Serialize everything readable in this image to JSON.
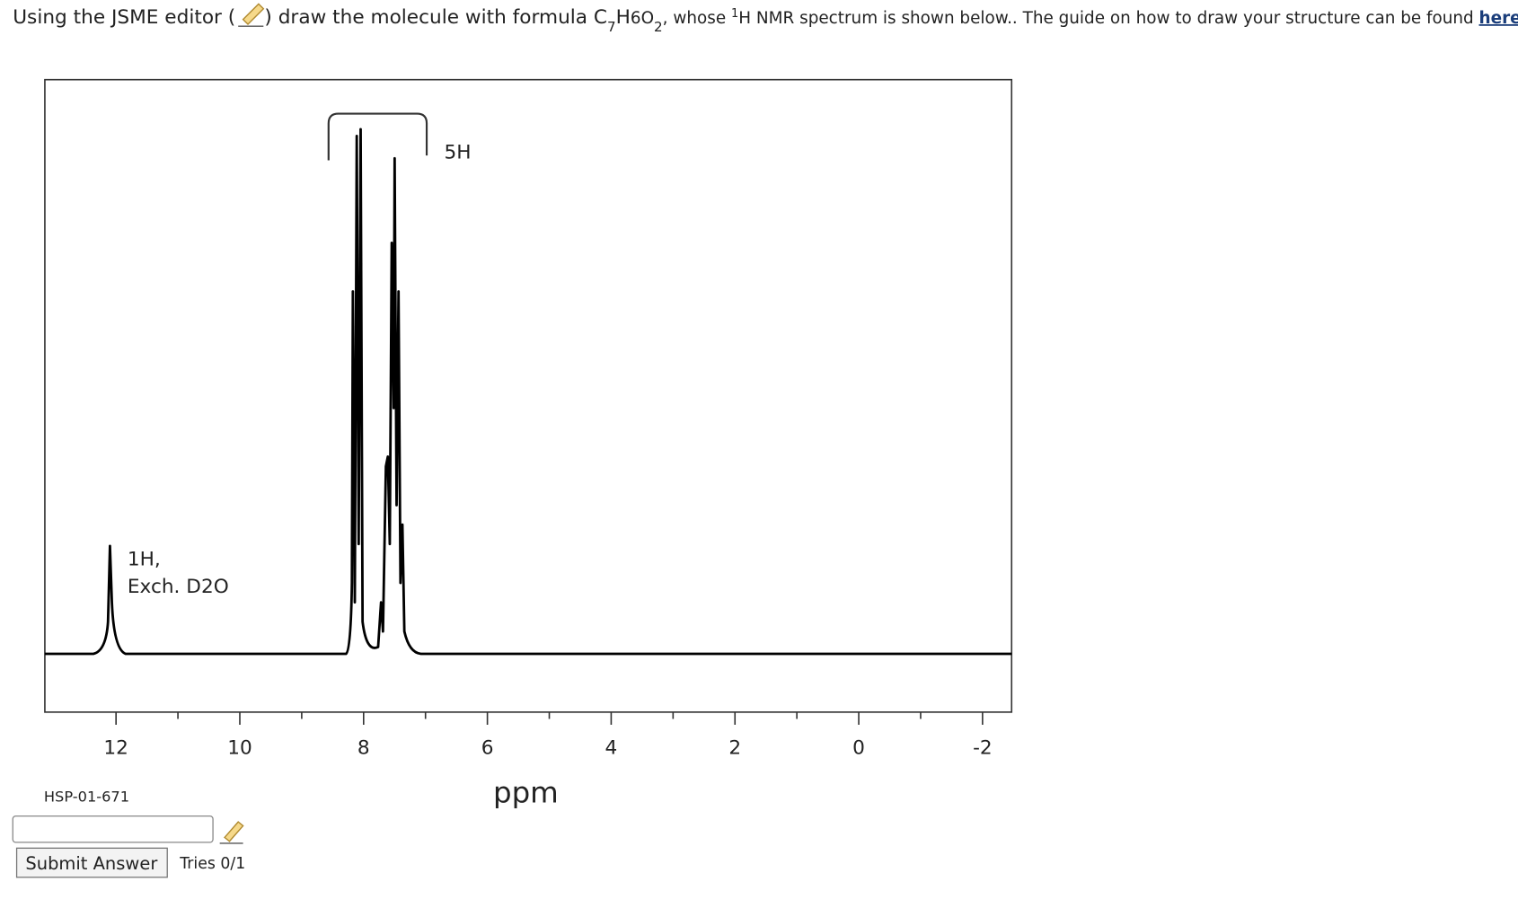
{
  "question": {
    "part1": "Using the JSME editor (",
    "part2": ") draw the molecule with formula C",
    "sub_c": "7",
    "h": "H",
    "six_o": "6O",
    "sub_o": "2",
    "comma": ",",
    "whose": " whose ",
    "sup_1": "1",
    "part3": "H NMR spectrum is shown below.. The guide on how to draw your structure can be found ",
    "link": "here",
    "end": "."
  },
  "spectrum": {
    "xlabel": "ppm",
    "xlim": [
      13.15,
      -2.47
    ],
    "xticks": [
      12,
      10,
      8,
      6,
      4,
      2,
      0,
      -2
    ],
    "minor_xticks": [
      11,
      9,
      7,
      5,
      3,
      1,
      -1
    ],
    "annotations": {
      "aromatic": "5H",
      "acid_line1": "1H,",
      "acid_line2": "Exch. D2O"
    }
  },
  "sample_id": "HSP-01-671",
  "answer_form": {
    "submit": "Submit Answer",
    "tries": "Tries 0/1"
  }
}
